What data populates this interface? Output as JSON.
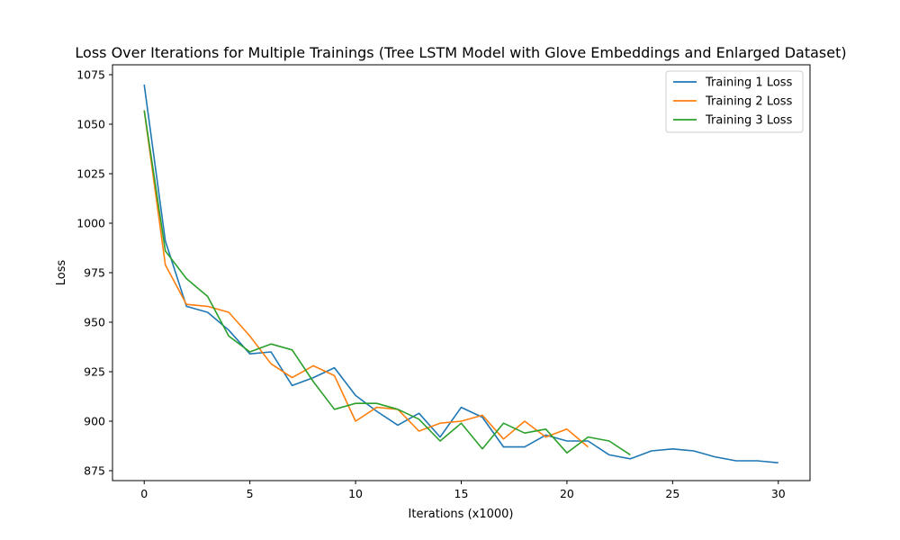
{
  "chart_data": {
    "type": "line",
    "title": "Loss Over Iterations for Multiple Trainings (Tree LSTM Model with Glove Embeddings and Enlarged Dataset)",
    "xlabel": "Iterations (x1000)",
    "ylabel": "Loss",
    "xlim": [
      -1.5,
      31.5
    ],
    "ylim": [
      870,
      1080
    ],
    "xticks": [
      0,
      5,
      10,
      15,
      20,
      25,
      30
    ],
    "yticks": [
      875,
      900,
      925,
      950,
      975,
      1000,
      1025,
      1050,
      1075
    ],
    "grid": false,
    "legend_position": "top-right",
    "series": [
      {
        "name": "Training 1 Loss",
        "color": "#1f77b4",
        "x": [
          0,
          1,
          2,
          3,
          4,
          5,
          6,
          7,
          8,
          9,
          10,
          11,
          12,
          13,
          14,
          15,
          16,
          17,
          18,
          19,
          20,
          21,
          22,
          23,
          24,
          25,
          26,
          27,
          28,
          29,
          30
        ],
        "values": [
          1070,
          991,
          958,
          955,
          946,
          934,
          935,
          918,
          922,
          927,
          913,
          905,
          898,
          904,
          892,
          907,
          902,
          887,
          887,
          893,
          890,
          890,
          883,
          881,
          885,
          886,
          885,
          882,
          880,
          880,
          879
        ]
      },
      {
        "name": "Training 2 Loss",
        "color": "#ff7f0e",
        "x": [
          0,
          1,
          2,
          3,
          4,
          5,
          6,
          7,
          8,
          9,
          10,
          11,
          12,
          13,
          14,
          15,
          16,
          17,
          18,
          19,
          20,
          21
        ],
        "values": [
          1057,
          979,
          959,
          958,
          955,
          943,
          929,
          922,
          928,
          923,
          900,
          907,
          906,
          895,
          899,
          900,
          903,
          891,
          900,
          892,
          896,
          887
        ]
      },
      {
        "name": "Training 3 Loss",
        "color": "#2ca02c",
        "x": [
          0,
          1,
          2,
          3,
          4,
          5,
          6,
          7,
          8,
          9,
          10,
          11,
          12,
          13,
          14,
          15,
          16,
          17,
          18,
          19,
          20,
          21,
          22,
          23
        ],
        "values": [
          1057,
          986,
          972,
          963,
          943,
          935,
          939,
          936,
          920,
          906,
          909,
          909,
          906,
          901,
          890,
          899,
          886,
          899,
          894,
          896,
          884,
          892,
          890,
          883
        ]
      }
    ]
  }
}
